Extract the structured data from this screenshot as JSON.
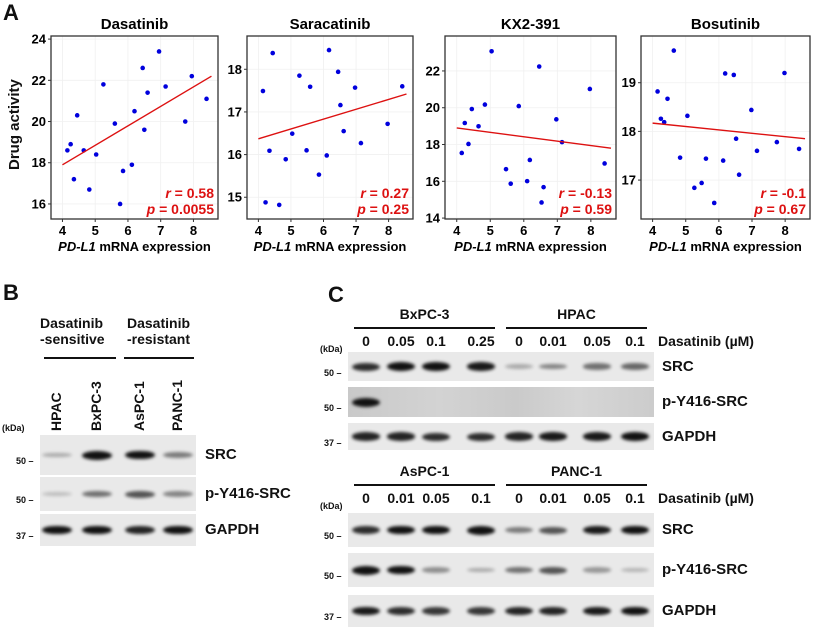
{
  "panel_a": {
    "letter": "A",
    "ylabel": "Drug activity"
  },
  "chart_data": [
    {
      "type": "scatter",
      "title": "Dasatinib",
      "xlabel_gene": "PD-L1",
      "xlabel_rest": " mRNA expression",
      "ylabel": "Drug activity",
      "xlim": [
        3.65,
        8.75
      ],
      "ylim": [
        15.27,
        24.15
      ],
      "xticks": [
        4,
        5,
        6,
        7,
        8
      ],
      "yticks": [
        16,
        18,
        20,
        22,
        24
      ],
      "grid": true,
      "points": [
        [
          4.15,
          18.6
        ],
        [
          4.25,
          18.9
        ],
        [
          4.35,
          17.2
        ],
        [
          4.45,
          20.3
        ],
        [
          4.65,
          18.6
        ],
        [
          4.82,
          16.7
        ],
        [
          5.03,
          18.4
        ],
        [
          5.25,
          21.8
        ],
        [
          5.6,
          19.9
        ],
        [
          5.76,
          16.0
        ],
        [
          5.85,
          17.6
        ],
        [
          6.12,
          17.9
        ],
        [
          6.2,
          20.5
        ],
        [
          6.45,
          22.6
        ],
        [
          6.5,
          19.6
        ],
        [
          6.6,
          21.4
        ],
        [
          6.95,
          23.4
        ],
        [
          7.15,
          21.7
        ],
        [
          7.75,
          20.0
        ],
        [
          7.95,
          22.2
        ],
        [
          8.4,
          21.1
        ]
      ],
      "fit": [
        [
          4.0,
          17.9
        ],
        [
          8.55,
          22.2
        ]
      ],
      "r": "0.58",
      "p": "0.0055",
      "point_color": "#0000dd",
      "fit_color": "#dd1111"
    },
    {
      "type": "scatter",
      "title": "Saracatinib",
      "xlabel_gene": "PD-L1",
      "xlabel_rest": " mRNA expression",
      "xlim": [
        3.65,
        8.75
      ],
      "ylim": [
        14.49,
        18.78
      ],
      "xticks": [
        4,
        5,
        6,
        7,
        8
      ],
      "yticks": [
        15,
        16,
        17,
        18
      ],
      "grid": true,
      "points": [
        [
          4.14,
          17.49
        ],
        [
          4.22,
          14.88
        ],
        [
          4.34,
          16.09
        ],
        [
          4.44,
          18.38
        ],
        [
          4.64,
          14.82
        ],
        [
          4.84,
          15.89
        ],
        [
          5.04,
          16.49
        ],
        [
          5.26,
          17.85
        ],
        [
          5.48,
          16.1
        ],
        [
          5.59,
          17.59
        ],
        [
          5.86,
          15.53
        ],
        [
          6.1,
          15.98
        ],
        [
          6.17,
          18.45
        ],
        [
          6.45,
          17.94
        ],
        [
          6.52,
          17.16
        ],
        [
          6.62,
          16.55
        ],
        [
          6.97,
          17.57
        ],
        [
          7.15,
          16.27
        ],
        [
          7.97,
          16.72
        ],
        [
          8.42,
          17.6
        ]
      ],
      "fit": [
        [
          4.0,
          16.37
        ],
        [
          8.55,
          17.42
        ]
      ],
      "r": "0.27",
      "p": "0.25",
      "point_color": "#0000dd",
      "fit_color": "#dd1111"
    },
    {
      "type": "scatter",
      "title": "KX2-391",
      "xlabel_gene": "PD-L1",
      "xlabel_rest": " mRNA expression",
      "xlim": [
        3.65,
        8.75
      ],
      "ylim": [
        13.95,
        23.9
      ],
      "xticks": [
        4,
        5,
        6,
        7,
        8
      ],
      "yticks": [
        14,
        16,
        18,
        20,
        22
      ],
      "grid": true,
      "points": [
        [
          4.15,
          17.54
        ],
        [
          4.24,
          19.17
        ],
        [
          4.35,
          18.03
        ],
        [
          4.45,
          19.93
        ],
        [
          4.65,
          18.99
        ],
        [
          4.84,
          20.17
        ],
        [
          5.04,
          23.07
        ],
        [
          5.47,
          16.66
        ],
        [
          5.61,
          15.87
        ],
        [
          5.85,
          20.09
        ],
        [
          6.1,
          16.01
        ],
        [
          6.18,
          17.16
        ],
        [
          6.46,
          22.24
        ],
        [
          6.53,
          14.85
        ],
        [
          6.59,
          15.68
        ],
        [
          6.97,
          19.37
        ],
        [
          7.14,
          18.13
        ],
        [
          7.97,
          21.02
        ],
        [
          8.41,
          16.97
        ]
      ],
      "fit": [
        [
          4.0,
          18.9
        ],
        [
          8.6,
          17.8
        ]
      ],
      "r": "-0.13",
      "p": "0.59",
      "point_color": "#0000dd",
      "fit_color": "#dd1111"
    },
    {
      "type": "scatter",
      "title": "Bosutinib",
      "xlabel_gene": "PD-L1",
      "xlabel_rest": " mRNA expression",
      "xlim": [
        3.65,
        8.75
      ],
      "ylim": [
        16.2,
        19.96
      ],
      "xticks": [
        4,
        5,
        6,
        7,
        8
      ],
      "yticks": [
        17,
        18,
        19
      ],
      "grid": true,
      "points": [
        [
          4.15,
          18.82
        ],
        [
          4.25,
          18.26
        ],
        [
          4.35,
          18.19
        ],
        [
          4.45,
          18.67
        ],
        [
          4.64,
          19.66
        ],
        [
          4.83,
          17.46
        ],
        [
          5.05,
          18.32
        ],
        [
          5.26,
          16.84
        ],
        [
          5.48,
          16.94
        ],
        [
          5.61,
          17.44
        ],
        [
          5.86,
          16.53
        ],
        [
          6.13,
          17.4
        ],
        [
          6.19,
          19.19
        ],
        [
          6.45,
          19.16
        ],
        [
          6.52,
          17.85
        ],
        [
          6.61,
          17.11
        ],
        [
          6.98,
          18.44
        ],
        [
          7.15,
          17.6
        ],
        [
          7.75,
          17.78
        ],
        [
          7.98,
          19.2
        ],
        [
          8.42,
          17.64
        ]
      ],
      "fit": [
        [
          4.0,
          18.17
        ],
        [
          8.6,
          17.85
        ]
      ],
      "r": "-0.1",
      "p": "0.67",
      "point_color": "#0000dd",
      "fit_color": "#dd1111"
    }
  ],
  "panel_b": {
    "letter": "B",
    "group1": [
      "Dasatinib",
      "-sensitive"
    ],
    "group2": [
      "Dasatinib",
      "-resistant"
    ],
    "lanes": [
      "HPAC",
      "BxPC-3",
      "AsPC-1",
      "PANC-1"
    ],
    "kda": "(kDa)",
    "blots": [
      {
        "label": "SRC",
        "mw": "50",
        "intensity": [
          0.15,
          1,
          0.95,
          0.4
        ]
      },
      {
        "label": "p-Y416-SRC",
        "mw": "50",
        "intensity": [
          0.05,
          0.45,
          0.6,
          0.35
        ]
      },
      {
        "label": "GAPDH",
        "mw": "37",
        "intensity": [
          0.95,
          0.95,
          0.85,
          0.95
        ]
      }
    ]
  },
  "panel_c": {
    "letter": "C",
    "kda": "(kDa)",
    "treatment_label": "Dasatinib (µM)",
    "top": {
      "groups": [
        "BxPC-3",
        "HPAC"
      ],
      "doses": [
        "0",
        "0.05",
        "0.1",
        "0.25",
        "0",
        "0.01",
        "0.05",
        "0.1"
      ],
      "blots": [
        {
          "label": "SRC",
          "mw": "50",
          "intensity": [
            0.8,
            1,
            0.95,
            0.9,
            0.15,
            0.35,
            0.45,
            0.5
          ]
        },
        {
          "label": "p-Y416-SRC",
          "mw": "50",
          "intensity": [
            1,
            0,
            0,
            0,
            0,
            0,
            0,
            0
          ]
        },
        {
          "label": "GAPDH",
          "mw": "37",
          "intensity": [
            0.85,
            0.85,
            0.8,
            0.8,
            0.85,
            0.9,
            0.9,
            0.95
          ]
        }
      ]
    },
    "bottom": {
      "groups": [
        "AsPC-1",
        "PANC-1"
      ],
      "doses": [
        "0",
        "0.01",
        "0.05",
        "0.1",
        "0",
        "0.01",
        "0.05",
        "0.1"
      ],
      "blots": [
        {
          "label": "SRC",
          "mw": "50",
          "intensity": [
            0.8,
            0.95,
            0.95,
            1,
            0.4,
            0.6,
            0.9,
            0.95
          ]
        },
        {
          "label": "p-Y416-SRC",
          "mw": "50",
          "intensity": [
            1,
            0.95,
            0.3,
            0.15,
            0.45,
            0.6,
            0.25,
            0.1
          ]
        },
        {
          "label": "GAPDH",
          "mw": "37",
          "intensity": [
            0.9,
            0.8,
            0.75,
            0.75,
            0.85,
            0.85,
            0.9,
            0.95
          ]
        }
      ]
    }
  }
}
